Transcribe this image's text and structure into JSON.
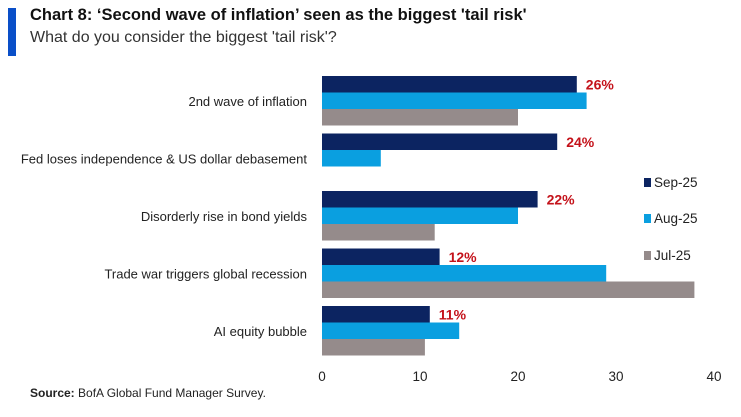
{
  "header": {
    "title": "Chart 8: ‘Second wave of inflation’ seen as the biggest 'tail risk'",
    "subtitle": "What do you consider the biggest 'tail risk'?"
  },
  "footer": {
    "source_label": "Source:",
    "source_text": " BofA Global Fund Manager Survey."
  },
  "chart_data": {
    "type": "bar",
    "orientation": "horizontal",
    "title": "Chart 8: ‘Second wave of inflation’ seen as the biggest 'tail risk'",
    "subtitle": "What do you consider the biggest 'tail risk'?",
    "categories": [
      "2nd wave of inflation",
      "Fed loses independence & US dollar debasement",
      "Disorderly rise in bond yields",
      "Trade war triggers global recession",
      "AI equity bubble"
    ],
    "series": [
      {
        "name": "Sep-25",
        "color": "#0c2461",
        "values": [
          26,
          24,
          22,
          12,
          11
        ]
      },
      {
        "name": "Aug-25",
        "color": "#0a9fe0",
        "values": [
          27,
          6,
          20,
          29,
          14
        ]
      },
      {
        "name": "Jul-25",
        "color": "#958b8b",
        "values": [
          20,
          null,
          11.5,
          38,
          10.5
        ]
      }
    ],
    "data_labels": [
      "26%",
      "24%",
      "22%",
      "12%",
      "11%"
    ],
    "xlim": [
      0,
      40
    ],
    "xticks": [
      "0",
      "10",
      "20",
      "30",
      "40"
    ],
    "grid": false,
    "legend_position": "right"
  }
}
